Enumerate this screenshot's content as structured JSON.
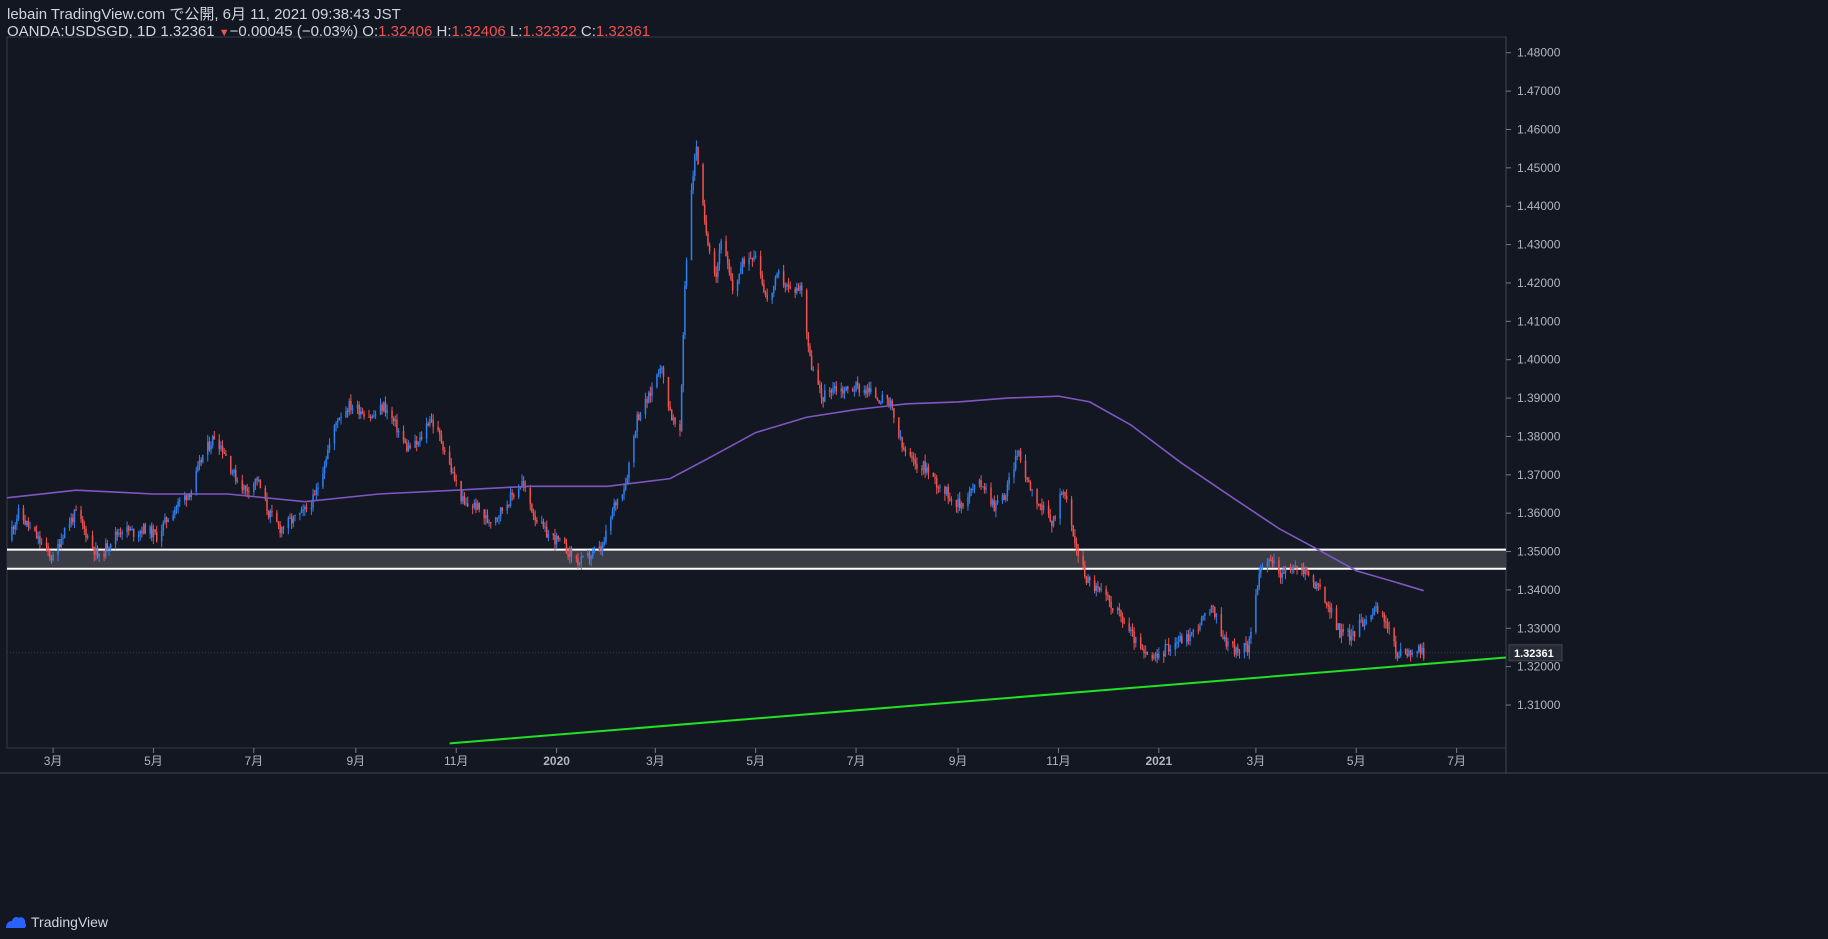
{
  "header": {
    "publisher_line": "lebain TradingView.com で公開, 6月 11, 2021 09:38:43 JST",
    "symbol": "OANDA:USDSGD, 1D",
    "last": "1.32361",
    "change_arrow": "▼",
    "change": "−0.00045 (−0.03%)",
    "o_label": "O:",
    "o_value": "1.32406",
    "h_label": "H:",
    "h_value": "1.32406",
    "l_label": "L:",
    "l_value": "1.32322",
    "c_label": "C:",
    "c_value": "1.32361"
  },
  "footer": {
    "brand": "TradingView"
  },
  "colors": {
    "background": "#131722",
    "up_candle": "#2f80ed",
    "down_candle": "#ef5350",
    "moving_average": "#7e57c2",
    "trendline": "#22e022",
    "zone_fill": "#3a3d46",
    "zone_border": "#ffffff",
    "price_label_bg": "#262a35"
  },
  "chart_data": {
    "type": "candlestick",
    "symbol": "OANDA:USDSGD",
    "interval": "1D",
    "y_ticks": [
      1.31,
      1.32,
      1.33,
      1.34,
      1.35,
      1.36,
      1.37,
      1.38,
      1.39,
      1.4,
      1.41,
      1.42,
      1.43,
      1.44,
      1.45,
      1.46,
      1.47,
      1.48
    ],
    "y_tick_labels": [
      "1.31000",
      "1.32000",
      "1.33000",
      "1.34000",
      "1.35000",
      "1.36000",
      "1.37000",
      "1.38000",
      "1.39000",
      "1.40000",
      "1.41000",
      "1.42000",
      "1.43000",
      "1.44000",
      "1.45000",
      "1.46000",
      "1.47000",
      "1.48000"
    ],
    "ylim": [
      1.2988,
      1.4841
    ],
    "x_range": [
      "2019-02-01",
      "2021-07-31"
    ],
    "x_ticks": [
      {
        "date": "2019-03-01",
        "label": "3月"
      },
      {
        "date": "2019-05-01",
        "label": "5月"
      },
      {
        "date": "2019-07-01",
        "label": "7月"
      },
      {
        "date": "2019-09-01",
        "label": "9月"
      },
      {
        "date": "2019-11-01",
        "label": "11月"
      },
      {
        "date": "2020-01-01",
        "label": "2020"
      },
      {
        "date": "2020-03-01",
        "label": "3月"
      },
      {
        "date": "2020-05-01",
        "label": "5月"
      },
      {
        "date": "2020-07-01",
        "label": "7月"
      },
      {
        "date": "2020-09-01",
        "label": "9月"
      },
      {
        "date": "2020-11-01",
        "label": "11月"
      },
      {
        "date": "2021-01-01",
        "label": "2021"
      },
      {
        "date": "2021-03-01",
        "label": "3月"
      },
      {
        "date": "2021-05-01",
        "label": "5月"
      },
      {
        "date": "2021-07-01",
        "label": "7月"
      }
    ],
    "close_path": [
      [
        "2019-02-01",
        1.353
      ],
      [
        "2019-02-08",
        1.36
      ],
      [
        "2019-02-15",
        1.356
      ],
      [
        "2019-02-22",
        1.352
      ],
      [
        "2019-03-01",
        1.348
      ],
      [
        "2019-03-08",
        1.356
      ],
      [
        "2019-03-15",
        1.36
      ],
      [
        "2019-03-22",
        1.354
      ],
      [
        "2019-03-29",
        1.348
      ],
      [
        "2019-04-05",
        1.353
      ],
      [
        "2019-04-12",
        1.356
      ],
      [
        "2019-04-19",
        1.355
      ],
      [
        "2019-04-26",
        1.356
      ],
      [
        "2019-05-03",
        1.354
      ],
      [
        "2019-05-10",
        1.359
      ],
      [
        "2019-05-17",
        1.363
      ],
      [
        "2019-05-24",
        1.366
      ],
      [
        "2019-05-31",
        1.375
      ],
      [
        "2019-06-07",
        1.38
      ],
      [
        "2019-06-12",
        1.377
      ],
      [
        "2019-06-19",
        1.37
      ],
      [
        "2019-06-26",
        1.366
      ],
      [
        "2019-07-03",
        1.369
      ],
      [
        "2019-07-10",
        1.36
      ],
      [
        "2019-07-17",
        1.356
      ],
      [
        "2019-07-24",
        1.358
      ],
      [
        "2019-07-31",
        1.36
      ],
      [
        "2019-08-07",
        1.364
      ],
      [
        "2019-08-14",
        1.375
      ],
      [
        "2019-08-21",
        1.385
      ],
      [
        "2019-08-28",
        1.388
      ],
      [
        "2019-09-04",
        1.387
      ],
      [
        "2019-09-11",
        1.385
      ],
      [
        "2019-09-18",
        1.388
      ],
      [
        "2019-09-25",
        1.383
      ],
      [
        "2019-10-02",
        1.377
      ],
      [
        "2019-10-09",
        1.378
      ],
      [
        "2019-10-16",
        1.385
      ],
      [
        "2019-10-23",
        1.379
      ],
      [
        "2019-10-30",
        1.37
      ],
      [
        "2019-11-06",
        1.362
      ],
      [
        "2019-11-13",
        1.362
      ],
      [
        "2019-11-20",
        1.358
      ],
      [
        "2019-11-27",
        1.36
      ],
      [
        "2019-12-04",
        1.364
      ],
      [
        "2019-12-11",
        1.368
      ],
      [
        "2019-12-18",
        1.36
      ],
      [
        "2019-12-25",
        1.355
      ],
      [
        "2020-01-01",
        1.353
      ],
      [
        "2020-01-08",
        1.35
      ],
      [
        "2020-01-15",
        1.347
      ],
      [
        "2020-01-22",
        1.349
      ],
      [
        "2020-01-29",
        1.351
      ],
      [
        "2020-02-05",
        1.362
      ],
      [
        "2020-02-12",
        1.368
      ],
      [
        "2020-02-19",
        1.385
      ],
      [
        "2020-02-26",
        1.39
      ],
      [
        "2020-03-04",
        1.399
      ],
      [
        "2020-03-11",
        1.385
      ],
      [
        "2020-03-16",
        1.38
      ],
      [
        "2020-03-19",
        1.42
      ],
      [
        "2020-03-23",
        1.445
      ],
      [
        "2020-03-26",
        1.456
      ],
      [
        "2020-03-31",
        1.435
      ],
      [
        "2020-04-07",
        1.422
      ],
      [
        "2020-04-10",
        1.432
      ],
      [
        "2020-04-17",
        1.418
      ],
      [
        "2020-04-24",
        1.426
      ],
      [
        "2020-05-01",
        1.428
      ],
      [
        "2020-05-08",
        1.415
      ],
      [
        "2020-05-15",
        1.422
      ],
      [
        "2020-05-22",
        1.418
      ],
      [
        "2020-05-29",
        1.419
      ],
      [
        "2020-06-03",
        1.4
      ],
      [
        "2020-06-10",
        1.39
      ],
      [
        "2020-06-17",
        1.393
      ],
      [
        "2020-06-24",
        1.392
      ],
      [
        "2020-07-01",
        1.393
      ],
      [
        "2020-07-08",
        1.392
      ],
      [
        "2020-07-15",
        1.39
      ],
      [
        "2020-07-22",
        1.388
      ],
      [
        "2020-07-29",
        1.377
      ],
      [
        "2020-08-05",
        1.373
      ],
      [
        "2020-08-12",
        1.372
      ],
      [
        "2020-08-19",
        1.368
      ],
      [
        "2020-08-26",
        1.365
      ],
      [
        "2020-09-02",
        1.362
      ],
      [
        "2020-09-09",
        1.366
      ],
      [
        "2020-09-16",
        1.368
      ],
      [
        "2020-09-23",
        1.362
      ],
      [
        "2020-09-30",
        1.365
      ],
      [
        "2020-10-07",
        1.376
      ],
      [
        "2020-10-14",
        1.368
      ],
      [
        "2020-10-21",
        1.362
      ],
      [
        "2020-10-28",
        1.357
      ],
      [
        "2020-11-04",
        1.367
      ],
      [
        "2020-11-11",
        1.352
      ],
      [
        "2020-11-18",
        1.343
      ],
      [
        "2020-11-25",
        1.34
      ],
      [
        "2020-12-02",
        1.337
      ],
      [
        "2020-12-09",
        1.333
      ],
      [
        "2020-12-16",
        1.328
      ],
      [
        "2020-12-23",
        1.323
      ],
      [
        "2020-12-30",
        1.322
      ],
      [
        "2021-01-06",
        1.325
      ],
      [
        "2021-01-13",
        1.327
      ],
      [
        "2021-01-20",
        1.328
      ],
      [
        "2021-01-27",
        1.332
      ],
      [
        "2021-02-03",
        1.335
      ],
      [
        "2021-02-10",
        1.327
      ],
      [
        "2021-02-17",
        1.324
      ],
      [
        "2021-02-24",
        1.325
      ],
      [
        "2021-03-03",
        1.344
      ],
      [
        "2021-03-10",
        1.348
      ],
      [
        "2021-03-17",
        1.344
      ],
      [
        "2021-03-24",
        1.346
      ],
      [
        "2021-03-31",
        1.345
      ],
      [
        "2021-04-07",
        1.341
      ],
      [
        "2021-04-14",
        1.336
      ],
      [
        "2021-04-21",
        1.329
      ],
      [
        "2021-04-28",
        1.328
      ],
      [
        "2021-05-05",
        1.332
      ],
      [
        "2021-05-12",
        1.335
      ],
      [
        "2021-05-19",
        1.332
      ],
      [
        "2021-05-26",
        1.323
      ],
      [
        "2021-06-02",
        1.324
      ],
      [
        "2021-06-09",
        1.324
      ],
      [
        "2021-06-11",
        1.3236
      ]
    ],
    "moving_average": [
      [
        "2019-02-01",
        1.364
      ],
      [
        "2019-03-15",
        1.366
      ],
      [
        "2019-05-01",
        1.365
      ],
      [
        "2019-06-15",
        1.365
      ],
      [
        "2019-08-01",
        1.363
      ],
      [
        "2019-09-15",
        1.365
      ],
      [
        "2019-11-01",
        1.366
      ],
      [
        "2019-12-15",
        1.367
      ],
      [
        "2020-02-01",
        1.367
      ],
      [
        "2020-03-10",
        1.369
      ],
      [
        "2020-04-01",
        1.374
      ],
      [
        "2020-05-01",
        1.381
      ],
      [
        "2020-06-01",
        1.385
      ],
      [
        "2020-07-01",
        1.387
      ],
      [
        "2020-08-01",
        1.3885
      ],
      [
        "2020-09-01",
        1.389
      ],
      [
        "2020-10-01",
        1.39
      ],
      [
        "2020-11-01",
        1.3905
      ],
      [
        "2020-11-20",
        1.389
      ],
      [
        "2020-12-15",
        1.383
      ],
      [
        "2021-01-15",
        1.373
      ],
      [
        "2021-02-15",
        1.364
      ],
      [
        "2021-03-15",
        1.356
      ],
      [
        "2021-04-10",
        1.35
      ],
      [
        "2021-05-01",
        1.345
      ],
      [
        "2021-05-25",
        1.342
      ],
      [
        "2021-06-11",
        1.3398
      ]
    ],
    "zone": {
      "low": 1.3455,
      "high": 1.3505
    },
    "trendline": {
      "start": [
        "2019-10-28",
        1.3
      ],
      "end": [
        "2021-07-31",
        1.3224
      ]
    },
    "last_price": 1.32361,
    "last_price_label": "1.32361"
  }
}
